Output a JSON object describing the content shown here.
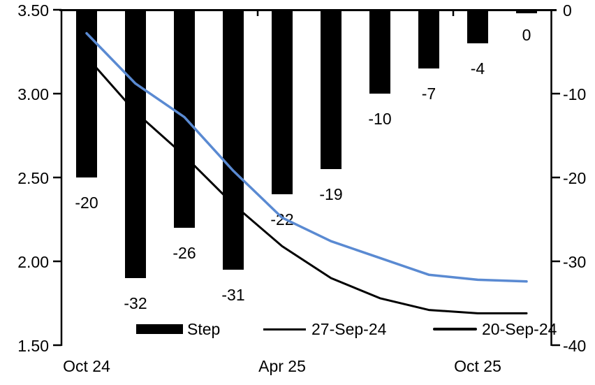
{
  "chart_data": {
    "type": "bar+line combo",
    "title": "",
    "background": "#ffffff",
    "categories_count": 10,
    "x_tick_labels": [
      {
        "label": "Oct 24",
        "category_index": 0
      },
      {
        "label": "Apr 25",
        "category_index": 4
      },
      {
        "label": "Oct 25",
        "category_index": 8
      }
    ],
    "category_boundary_ticks": [
      4,
      8
    ],
    "left_axis": {
      "min": 1.5,
      "max": 3.5,
      "ticks": [
        "3.50",
        "3.00",
        "2.50",
        "2.00",
        "1.50"
      ]
    },
    "right_axis": {
      "min": -40,
      "max": 0,
      "ticks": [
        "0",
        "-10",
        "-20",
        "-30",
        "-40"
      ]
    },
    "bar_series": {
      "name": "Step",
      "axis": "right",
      "color": "#000000",
      "values": [
        -20,
        -32,
        -26,
        -31,
        -22,
        -19,
        -10,
        -7,
        -4,
        0
      ],
      "data_labels": [
        "-20",
        "-32",
        "-26",
        "-31",
        "-22",
        "-19",
        "-10",
        "-7",
        "-4",
        "0"
      ]
    },
    "line_series": [
      {
        "name": "27-Sep-24",
        "axis": "left",
        "color": "#000000",
        "values": [
          3.22,
          2.89,
          2.63,
          2.34,
          2.09,
          1.9,
          1.78,
          1.71,
          1.69,
          1.69
        ]
      },
      {
        "name": "20-Sep-24",
        "axis": "left",
        "color": "#5A8AD2",
        "values": [
          3.36,
          3.06,
          2.86,
          2.54,
          2.26,
          2.12,
          2.02,
          1.92,
          1.89,
          1.88
        ]
      }
    ],
    "legend": [
      {
        "label": "Step",
        "swatch": "bar-black"
      },
      {
        "label": "27-Sep-24",
        "swatch": "line-black"
      },
      {
        "label": "20-Sep-24",
        "swatch": "line-blue"
      }
    ]
  }
}
